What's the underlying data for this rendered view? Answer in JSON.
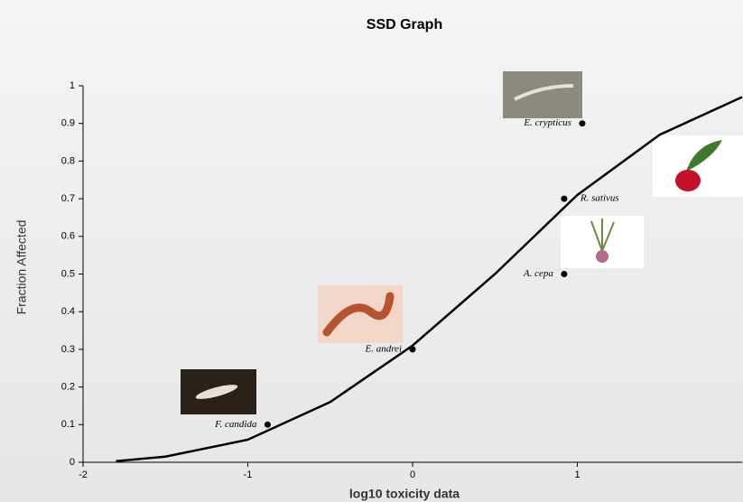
{
  "chart_data": {
    "type": "scatter",
    "title": "SSD Graph",
    "x_label": "log10 toxicity data",
    "y_label": "Fraction Affected",
    "xlim": [
      -2,
      2
    ],
    "xticks": [
      -2,
      -1,
      0,
      1
    ],
    "ylim": [
      0,
      1
    ],
    "yticks": [
      0,
      0.1,
      0.2,
      0.3,
      0.4,
      0.5,
      0.6,
      0.7,
      0.8,
      0.9,
      1
    ],
    "point_color": "#000000",
    "points": {
      "labels": [
        "F. candida",
        "E. andrei",
        "A. cepa",
        "R. sativus",
        "E. crypticus"
      ],
      "x": [
        -0.88,
        0,
        0.92,
        0.92,
        1.03
      ],
      "values": [
        0.1,
        0.3,
        0.5,
        0.7,
        0.9
      ]
    },
    "curve": {
      "color": "#000000",
      "x": [
        -1.8,
        -1.5,
        -1,
        -0.5,
        0,
        0.5,
        1,
        1.5,
        2
      ],
      "values": [
        0.003,
        0.015,
        0.06,
        0.16,
        0.31,
        0.5,
        0.71,
        0.87,
        0.97
      ]
    }
  }
}
